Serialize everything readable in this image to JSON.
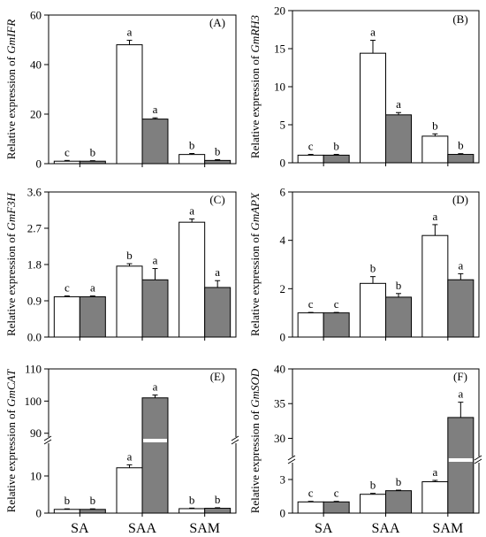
{
  "colors": {
    "white_bar": "#ffffff",
    "grey_bar": "#7f7f7f",
    "axis": "#000000"
  },
  "x_categories": [
    "SA",
    "SAA",
    "SAM"
  ],
  "chart_data": [
    {
      "type": "bar",
      "panel_label": "(A)",
      "ylabel_prefix": "Relative expression of ",
      "gene": "GmIFR",
      "categories": [
        "SA",
        "SAA",
        "SAM"
      ],
      "ylim": [
        0,
        60
      ],
      "yticks": [
        0,
        20,
        40,
        60
      ],
      "ytick_labels": [
        "0",
        "20",
        "40",
        "60"
      ],
      "show_xtick_labels": false,
      "series": [
        {
          "values": [
            1.0,
            48.0,
            3.7
          ],
          "errors": [
            0.3,
            1.8,
            0.4
          ],
          "letters": [
            "c",
            "a",
            "b"
          ]
        },
        {
          "values": [
            1.0,
            18.0,
            1.3
          ],
          "errors": [
            0.2,
            0.5,
            0.3
          ],
          "letters": [
            "b",
            "a",
            "b"
          ]
        }
      ]
    },
    {
      "type": "bar",
      "panel_label": "(B)",
      "ylabel_prefix": "Relative expression of ",
      "gene": "GmRH3",
      "categories": [
        "SA",
        "SAA",
        "SAM"
      ],
      "ylim": [
        0,
        20
      ],
      "yticks": [
        0,
        5,
        10,
        15,
        20
      ],
      "ytick_labels": [
        "0",
        "5",
        "10",
        "15",
        "20"
      ],
      "show_xtick_labels": false,
      "series": [
        {
          "values": [
            1.0,
            14.4,
            3.5
          ],
          "errors": [
            0.1,
            1.7,
            0.3
          ],
          "letters": [
            "c",
            "a",
            "b"
          ]
        },
        {
          "values": [
            1.0,
            6.3,
            1.1
          ],
          "errors": [
            0.1,
            0.3,
            0.1
          ],
          "letters": [
            "b",
            "a",
            "b"
          ]
        }
      ]
    },
    {
      "type": "bar",
      "panel_label": "(C)",
      "ylabel_prefix": "Relative expression of ",
      "gene": "GmF3H",
      "categories": [
        "SA",
        "SAA",
        "SAM"
      ],
      "ylim": [
        0,
        3.6
      ],
      "yticks": [
        0,
        0.9,
        1.8,
        2.7,
        3.6
      ],
      "ytick_labels": [
        "0.0",
        "0.9",
        "1.8",
        "2.7",
        "3.6"
      ],
      "show_xtick_labels": false,
      "series": [
        {
          "values": [
            1.0,
            1.76,
            2.85
          ],
          "errors": [
            0.02,
            0.06,
            0.08
          ],
          "letters": [
            "c",
            "b",
            "a"
          ]
        },
        {
          "values": [
            1.0,
            1.42,
            1.23
          ],
          "errors": [
            0.02,
            0.28,
            0.17
          ],
          "letters": [
            "a",
            "a",
            "a"
          ]
        }
      ]
    },
    {
      "type": "bar",
      "panel_label": "(D)",
      "ylabel_prefix": "Relative expression of ",
      "gene": "GmAPX",
      "categories": [
        "SA",
        "SAA",
        "SAM"
      ],
      "ylim": [
        0,
        6
      ],
      "yticks": [
        0,
        2,
        4,
        6
      ],
      "ytick_labels": [
        "0",
        "2",
        "4",
        "6"
      ],
      "show_xtick_labels": false,
      "series": [
        {
          "values": [
            1.0,
            2.22,
            4.2
          ],
          "errors": [
            0.02,
            0.28,
            0.45
          ],
          "letters": [
            "c",
            "b",
            "a"
          ]
        },
        {
          "values": [
            1.0,
            1.65,
            2.37
          ],
          "errors": [
            0.02,
            0.15,
            0.25
          ],
          "letters": [
            "c",
            "b",
            "a"
          ]
        }
      ]
    },
    {
      "type": "bar",
      "panel_label": "(E)",
      "ylabel_prefix": "Relative expression of ",
      "gene": "GmCAT",
      "categories": [
        "SA",
        "SAA",
        "SAM"
      ],
      "broken_axis": {
        "lower": [
          0,
          15
        ],
        "upper": [
          88,
          110
        ]
      },
      "lower_ticks": [
        0,
        10
      ],
      "upper_ticks": [
        90,
        100,
        110
      ],
      "show_xtick_labels": true,
      "series": [
        {
          "values": [
            1.0,
            12.2,
            1.2
          ],
          "errors": [
            0.15,
            0.8,
            0.15
          ],
          "letters": [
            "b",
            "a",
            "b"
          ]
        },
        {
          "values": [
            1.0,
            101.0,
            1.3
          ],
          "errors": [
            0.15,
            0.9,
            0.15
          ],
          "letters": [
            "b",
            "a",
            "b"
          ]
        }
      ]
    },
    {
      "type": "bar",
      "panel_label": "(F)",
      "ylabel_prefix": "Relative expression of ",
      "gene": "GmSOD",
      "categories": [
        "SA",
        "SAA",
        "SAM"
      ],
      "broken_axis": {
        "lower": [
          0,
          4.5
        ],
        "upper": [
          27,
          40
        ]
      },
      "lower_ticks": [
        0,
        3
      ],
      "upper_ticks": [
        30,
        35,
        40
      ],
      "show_xtick_labels": true,
      "series": [
        {
          "values": [
            1.0,
            1.68,
            2.8
          ],
          "errors": [
            0.05,
            0.08,
            0.12
          ],
          "letters": [
            "c",
            "b",
            "a"
          ]
        },
        {
          "values": [
            1.0,
            2.0,
            33.0
          ],
          "errors": [
            0.05,
            0.05,
            2.2
          ],
          "letters": [
            "c",
            "b",
            "a"
          ]
        }
      ]
    }
  ]
}
